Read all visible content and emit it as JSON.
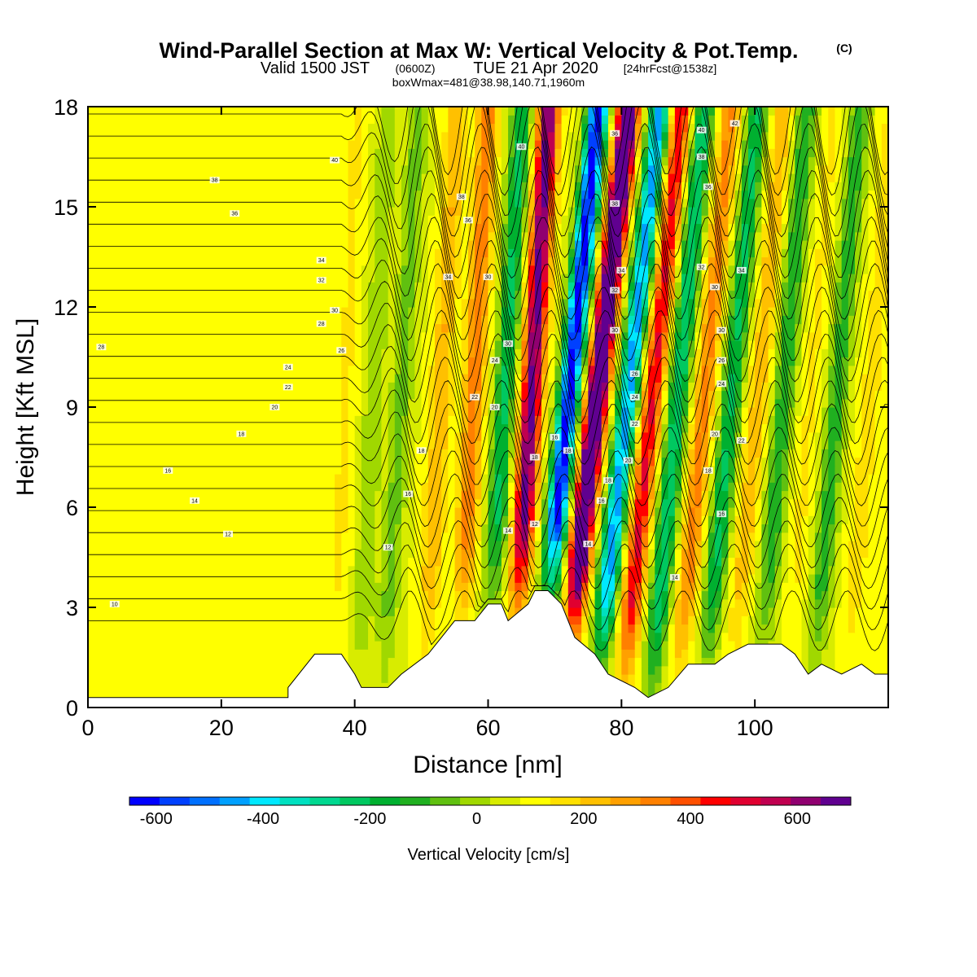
{
  "title": {
    "main": "Wind-Parallel Section at Max W: Vertical Velocity & Pot.Temp.",
    "unit_mark": "(C)",
    "valid_prefix": "Valid 1500 JST",
    "valid_utc": "(0600Z)",
    "valid_date": "TUE 21 Apr 2020",
    "forecast": "[24hrFcst@1538z]",
    "boxwmax": "boxWmax=481@38.98,140.71,1960m"
  },
  "chart_data": {
    "type": "heatmap",
    "title": "Wind-Parallel Section at Max W: Vertical Velocity & Pot.Temp. (C)",
    "xlabel": "Distance [nm]",
    "ylabel": "Height [Kft MSL]",
    "xlim": [
      0,
      120
    ],
    "ylim": [
      0,
      18
    ],
    "xticks": [
      0,
      20,
      40,
      60,
      80,
      100
    ],
    "xtick_labels": [
      "0",
      "20",
      "40",
      "60",
      "80",
      "100"
    ],
    "yticks": [
      0,
      3,
      6,
      9,
      12,
      15,
      18
    ],
    "ytick_labels": [
      "0",
      "3",
      "6",
      "9",
      "12",
      "15",
      "18"
    ],
    "colorbar": {
      "label": "Vertical Velocity [cm/s]",
      "min": -650,
      "max": 700,
      "step": 50,
      "tick_values": [
        -600,
        -400,
        -200,
        0,
        200,
        400,
        600
      ],
      "tick_labels": [
        "-600",
        "-400",
        "-200",
        "0",
        "200",
        "400",
        "600"
      ],
      "colors": [
        "#0000ff",
        "#0040ff",
        "#0070ff",
        "#00a0ff",
        "#00e8ff",
        "#00e0c0",
        "#00d890",
        "#00c860",
        "#00b030",
        "#20b020",
        "#60c010",
        "#a0d800",
        "#d8ec00",
        "#ffff00",
        "#ffe000",
        "#ffc000",
        "#ffa000",
        "#ff8000",
        "#ff5000",
        "#ff0000",
        "#e00030",
        "#c00050",
        "#900070",
        "#600090"
      ]
    },
    "velocity_bands": [
      {
        "x": 52,
        "slope": 0.28,
        "w": 150
      },
      {
        "x": 57,
        "slope": 0.25,
        "w": 230
      },
      {
        "x": 61.5,
        "slope": 0.3,
        "w": -260
      },
      {
        "x": 65.5,
        "slope": 0.3,
        "w": 520
      },
      {
        "x": 70.5,
        "slope": 0.5,
        "w": -640
      },
      {
        "x": 74.5,
        "slope": 0.55,
        "w": 700
      },
      {
        "x": 79.2,
        "slope": 0.55,
        "w": -480
      },
      {
        "x": 83,
        "slope": 0.5,
        "w": 360
      },
      {
        "x": 87,
        "slope": 0.45,
        "w": -300
      },
      {
        "x": 91,
        "slope": 0.45,
        "w": 220
      },
      {
        "x": 95,
        "slope": 0.45,
        "w": -260
      },
      {
        "x": 99,
        "slope": 0.45,
        "w": 140
      },
      {
        "x": 103,
        "slope": 0.4,
        "w": -200
      },
      {
        "x": 107,
        "slope": 0.4,
        "w": 60
      },
      {
        "x": 111,
        "slope": 0.4,
        "w": -180
      },
      {
        "x": 116,
        "slope": 0.4,
        "w": 80
      },
      {
        "x": 46,
        "slope": 0.3,
        "w": -120
      },
      {
        "x": 42,
        "slope": 0.25,
        "w": -90
      },
      {
        "x": 38,
        "slope": 0.2,
        "w": 60
      },
      {
        "x": 23,
        "slope": 0.0,
        "w": 50
      }
    ],
    "terrain": [
      {
        "x": 0,
        "h": 0.3
      },
      {
        "x": 30,
        "h": 0.3
      },
      {
        "x": 30,
        "h": 0.6
      },
      {
        "x": 34,
        "h": 1.6
      },
      {
        "x": 38,
        "h": 1.6
      },
      {
        "x": 40,
        "h": 1.0
      },
      {
        "x": 41,
        "h": 0.6
      },
      {
        "x": 45,
        "h": 0.6
      },
      {
        "x": 47,
        "h": 1.0
      },
      {
        "x": 51,
        "h": 1.6
      },
      {
        "x": 53,
        "h": 2.1
      },
      {
        "x": 55,
        "h": 2.6
      },
      {
        "x": 58,
        "h": 2.6
      },
      {
        "x": 60,
        "h": 3.1
      },
      {
        "x": 62,
        "h": 3.1
      },
      {
        "x": 63,
        "h": 2.6
      },
      {
        "x": 66,
        "h": 3.1
      },
      {
        "x": 67,
        "h": 3.5
      },
      {
        "x": 69,
        "h": 3.5
      },
      {
        "x": 71,
        "h": 3.1
      },
      {
        "x": 73,
        "h": 2.1
      },
      {
        "x": 76,
        "h": 1.6
      },
      {
        "x": 78,
        "h": 1.0
      },
      {
        "x": 80,
        "h": 0.8
      },
      {
        "x": 82,
        "h": 0.6
      },
      {
        "x": 84,
        "h": 0.3
      },
      {
        "x": 87,
        "h": 0.6
      },
      {
        "x": 90,
        "h": 1.3
      },
      {
        "x": 94,
        "h": 1.3
      },
      {
        "x": 96,
        "h": 1.6
      },
      {
        "x": 99,
        "h": 1.9
      },
      {
        "x": 104,
        "h": 1.9
      },
      {
        "x": 106,
        "h": 1.6
      },
      {
        "x": 108,
        "h": 1.0
      },
      {
        "x": 110,
        "h": 1.3
      },
      {
        "x": 113,
        "h": 1.0
      },
      {
        "x": 116,
        "h": 1.3
      },
      {
        "x": 118,
        "h": 1.0
      },
      {
        "x": 120,
        "h": 1.0
      }
    ],
    "theta_contours": {
      "start": 10,
      "step": 2,
      "count": 24,
      "labels": [
        {
          "x": 4,
          "y": 3.1,
          "text": "10"
        },
        {
          "x": 21,
          "y": 5.2,
          "text": "12"
        },
        {
          "x": 16,
          "y": 6.2,
          "text": "14"
        },
        {
          "x": 12,
          "y": 7.1,
          "text": "16"
        },
        {
          "x": 23,
          "y": 8.2,
          "text": "18"
        },
        {
          "x": 28,
          "y": 9.0,
          "text": "20"
        },
        {
          "x": 30,
          "y": 9.6,
          "text": "22"
        },
        {
          "x": 30,
          "y": 10.2,
          "text": "24"
        },
        {
          "x": 38,
          "y": 10.7,
          "text": "26"
        },
        {
          "x": 2,
          "y": 10.8,
          "text": "28"
        },
        {
          "x": 35,
          "y": 11.5,
          "text": "28"
        },
        {
          "x": 37,
          "y": 11.9,
          "text": "30"
        },
        {
          "x": 35,
          "y": 12.8,
          "text": "32"
        },
        {
          "x": 35,
          "y": 13.4,
          "text": "34"
        },
        {
          "x": 22,
          "y": 14.8,
          "text": "36"
        },
        {
          "x": 19,
          "y": 15.8,
          "text": "38"
        },
        {
          "x": 37,
          "y": 16.4,
          "text": "40"
        },
        {
          "x": 45,
          "y": 4.8,
          "text": "12"
        },
        {
          "x": 48,
          "y": 6.4,
          "text": "16"
        },
        {
          "x": 50,
          "y": 7.7,
          "text": "18"
        },
        {
          "x": 54,
          "y": 12.9,
          "text": "34"
        },
        {
          "x": 57,
          "y": 14.6,
          "text": "36"
        },
        {
          "x": 56,
          "y": 15.3,
          "text": "38"
        },
        {
          "x": 65,
          "y": 16.8,
          "text": "40"
        },
        {
          "x": 60,
          "y": 12.9,
          "text": "30"
        },
        {
          "x": 58,
          "y": 9.3,
          "text": "22"
        },
        {
          "x": 61,
          "y": 10.4,
          "text": "24"
        },
        {
          "x": 63,
          "y": 10.9,
          "text": "30"
        },
        {
          "x": 61,
          "y": 9.0,
          "text": "20"
        },
        {
          "x": 63,
          "y": 5.3,
          "text": "14"
        },
        {
          "x": 67,
          "y": 5.5,
          "text": "12"
        },
        {
          "x": 67,
          "y": 7.5,
          "text": "18"
        },
        {
          "x": 70,
          "y": 8.1,
          "text": "16"
        },
        {
          "x": 72,
          "y": 7.7,
          "text": "18"
        },
        {
          "x": 75,
          "y": 4.9,
          "text": "14"
        },
        {
          "x": 77,
          "y": 6.2,
          "text": "16"
        },
        {
          "x": 78,
          "y": 6.8,
          "text": "18"
        },
        {
          "x": 81,
          "y": 7.4,
          "text": "20"
        },
        {
          "x": 82,
          "y": 8.5,
          "text": "22"
        },
        {
          "x": 82,
          "y": 9.3,
          "text": "24"
        },
        {
          "x": 82,
          "y": 10.0,
          "text": "26"
        },
        {
          "x": 79,
          "y": 11.3,
          "text": "30"
        },
        {
          "x": 79,
          "y": 12.5,
          "text": "32"
        },
        {
          "x": 80,
          "y": 13.1,
          "text": "34"
        },
        {
          "x": 79,
          "y": 17.2,
          "text": "36"
        },
        {
          "x": 79,
          "y": 15.1,
          "text": "38"
        },
        {
          "x": 88,
          "y": 3.9,
          "text": "14"
        },
        {
          "x": 95,
          "y": 5.8,
          "text": "16"
        },
        {
          "x": 93,
          "y": 7.1,
          "text": "18"
        },
        {
          "x": 94,
          "y": 8.2,
          "text": "20"
        },
        {
          "x": 98,
          "y": 8.0,
          "text": "22"
        },
        {
          "x": 95,
          "y": 9.7,
          "text": "24"
        },
        {
          "x": 95,
          "y": 10.4,
          "text": "26"
        },
        {
          "x": 95,
          "y": 11.3,
          "text": "30"
        },
        {
          "x": 94,
          "y": 12.6,
          "text": "30"
        },
        {
          "x": 92,
          "y": 13.2,
          "text": "32"
        },
        {
          "x": 98,
          "y": 13.1,
          "text": "34"
        },
        {
          "x": 93,
          "y": 15.6,
          "text": "36"
        },
        {
          "x": 92,
          "y": 16.5,
          "text": "38"
        },
        {
          "x": 92,
          "y": 17.3,
          "text": "40"
        },
        {
          "x": 97,
          "y": 17.5,
          "text": "42"
        }
      ]
    }
  }
}
